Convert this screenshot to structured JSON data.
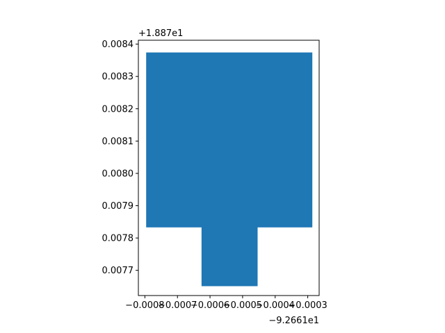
{
  "chart_data": {
    "type": "polygon",
    "grid": false,
    "fill_color": "#1f77b4",
    "axes_frame_color": "#000000",
    "x_offset_label": "−9.2661e1",
    "y_offset_label": "+1.887e1",
    "xlim": [
      -0.00082,
      -0.000265
    ],
    "ylim": [
      0.007622,
      0.008412
    ],
    "x_ticks": [
      {
        "value": -0.0008,
        "label": "−0.0008"
      },
      {
        "value": -0.0007,
        "label": "−0.0007"
      },
      {
        "value": -0.0006,
        "label": "−0.0006"
      },
      {
        "value": -0.0005,
        "label": "−0.0005"
      },
      {
        "value": -0.0004,
        "label": "−0.0004"
      },
      {
        "value": -0.0003,
        "label": "−0.0003"
      }
    ],
    "y_ticks": [
      {
        "value": 0.0077,
        "label": "0.0077"
      },
      {
        "value": 0.0078,
        "label": "0.0078"
      },
      {
        "value": 0.0079,
        "label": "0.0079"
      },
      {
        "value": 0.008,
        "label": "0.0080"
      },
      {
        "value": 0.0081,
        "label": "0.0081"
      },
      {
        "value": 0.0082,
        "label": "0.0082"
      },
      {
        "value": 0.0083,
        "label": "0.0083"
      },
      {
        "value": 0.0084,
        "label": "0.0084"
      }
    ],
    "polygon": [
      [
        -0.000795,
        0.008373
      ],
      [
        -0.000287,
        0.008373
      ],
      [
        -0.000287,
        0.007834
      ],
      [
        -0.000455,
        0.007834
      ],
      [
        -0.000455,
        0.007652
      ],
      [
        -0.000625,
        0.007652
      ],
      [
        -0.000625,
        0.007834
      ],
      [
        -0.000795,
        0.007834
      ]
    ]
  }
}
